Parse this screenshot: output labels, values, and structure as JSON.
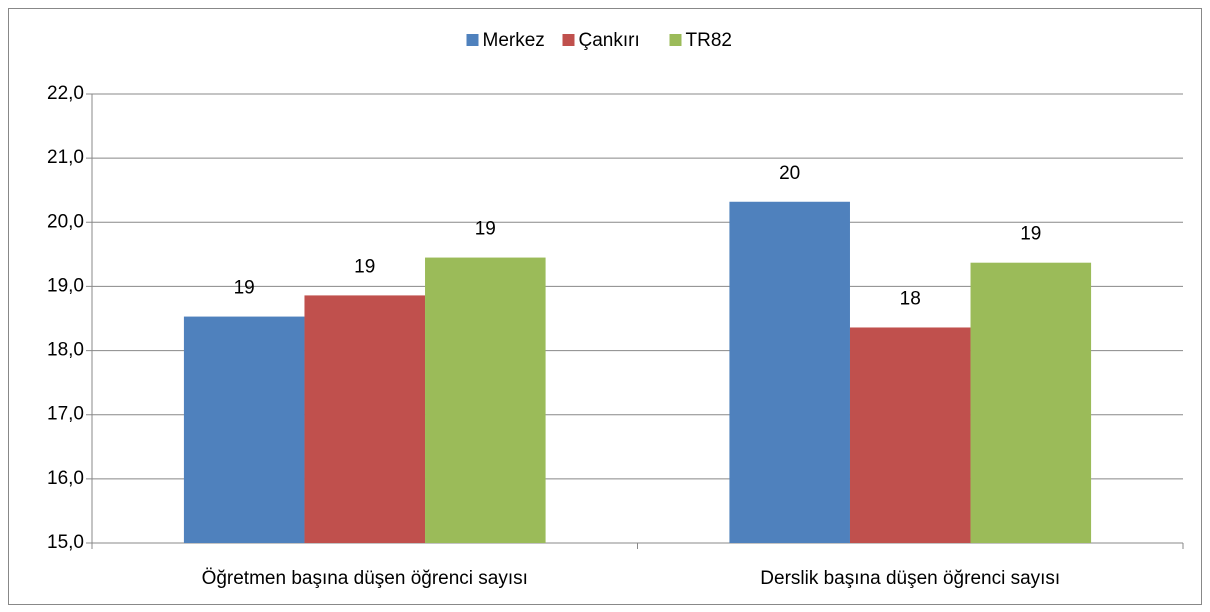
{
  "chart_data": {
    "type": "bar",
    "categories": [
      "Öğretmen başına düşen öğrenci sayısı",
      "Derslik başına düşen öğrenci sayısı"
    ],
    "series": [
      {
        "name": "Merkez",
        "color": "#4f81bd",
        "values": [
          18.53,
          20.32
        ],
        "value_labels": [
          "19",
          "20"
        ]
      },
      {
        "name": "Çankırı",
        "color": "#c0504d",
        "values": [
          18.86,
          18.36
        ],
        "value_labels": [
          "19",
          "18"
        ]
      },
      {
        "name": "TR82",
        "color": "#9bbb59",
        "values": [
          19.45,
          19.37
        ],
        "value_labels": [
          "19",
          "19"
        ]
      }
    ],
    "ylim": [
      15,
      22
    ],
    "yticks": [
      {
        "value": 15,
        "label": "15,0"
      },
      {
        "value": 16,
        "label": "16,0"
      },
      {
        "value": 17,
        "label": "17,0"
      },
      {
        "value": 18,
        "label": "18,0"
      },
      {
        "value": 19,
        "label": "19,0"
      },
      {
        "value": 20,
        "label": "20,0"
      },
      {
        "value": 21,
        "label": "21,0"
      },
      {
        "value": 22,
        "label": "22,0"
      }
    ],
    "grid": true,
    "legend": "top"
  }
}
